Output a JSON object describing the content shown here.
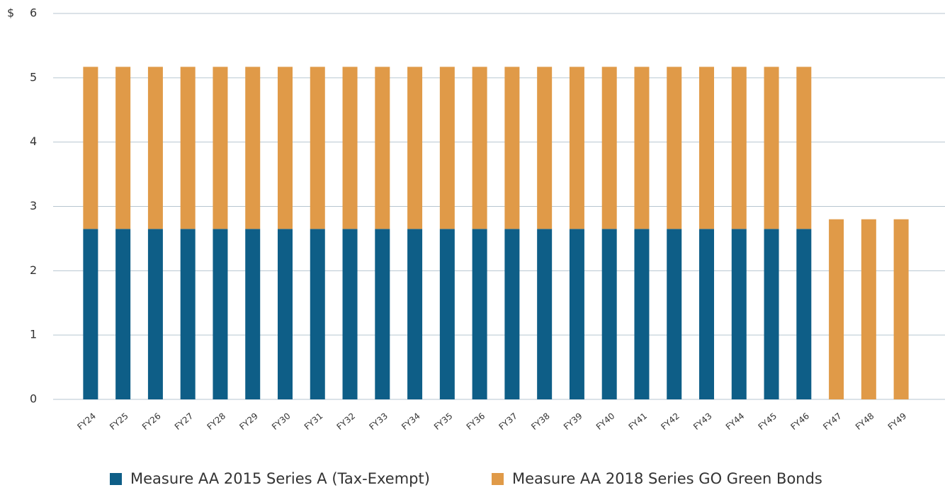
{
  "chart_data": {
    "type": "stacked_bar",
    "ylabel": "$",
    "categories": [
      "FY24",
      "FY25",
      "FY26",
      "FY27",
      "FY28",
      "FY29",
      "FY30",
      "FY31",
      "FY32",
      "FY33",
      "FY34",
      "FY35",
      "FY36",
      "FY37",
      "FY38",
      "FY39",
      "FY40",
      "FY41",
      "FY42",
      "FY43",
      "FY44",
      "FY45",
      "FY46",
      "FY47",
      "FY48",
      "FY49"
    ],
    "series": [
      {
        "name": "Measure AA 2015 Series A (Tax-Exempt)",
        "color": "#0e5e87",
        "values": [
          2.65,
          2.65,
          2.65,
          2.65,
          2.65,
          2.65,
          2.65,
          2.65,
          2.65,
          2.65,
          2.65,
          2.65,
          2.65,
          2.65,
          2.65,
          2.65,
          2.65,
          2.65,
          2.65,
          2.65,
          2.65,
          2.65,
          2.65,
          0,
          0,
          0
        ]
      },
      {
        "name": "Measure AA 2018 Series GO Green Bonds",
        "color": "#e09a48",
        "values": [
          2.52,
          2.52,
          2.52,
          2.52,
          2.52,
          2.52,
          2.52,
          2.52,
          2.52,
          2.52,
          2.52,
          2.52,
          2.52,
          2.52,
          2.52,
          2.52,
          2.52,
          2.52,
          2.52,
          2.52,
          2.52,
          2.52,
          2.52,
          2.8,
          2.8,
          2.8
        ]
      }
    ],
    "ylim": [
      0,
      6
    ],
    "yticks": [
      0,
      1,
      2,
      3,
      4,
      5,
      6
    ],
    "grid": true,
    "legend": "bottom"
  }
}
